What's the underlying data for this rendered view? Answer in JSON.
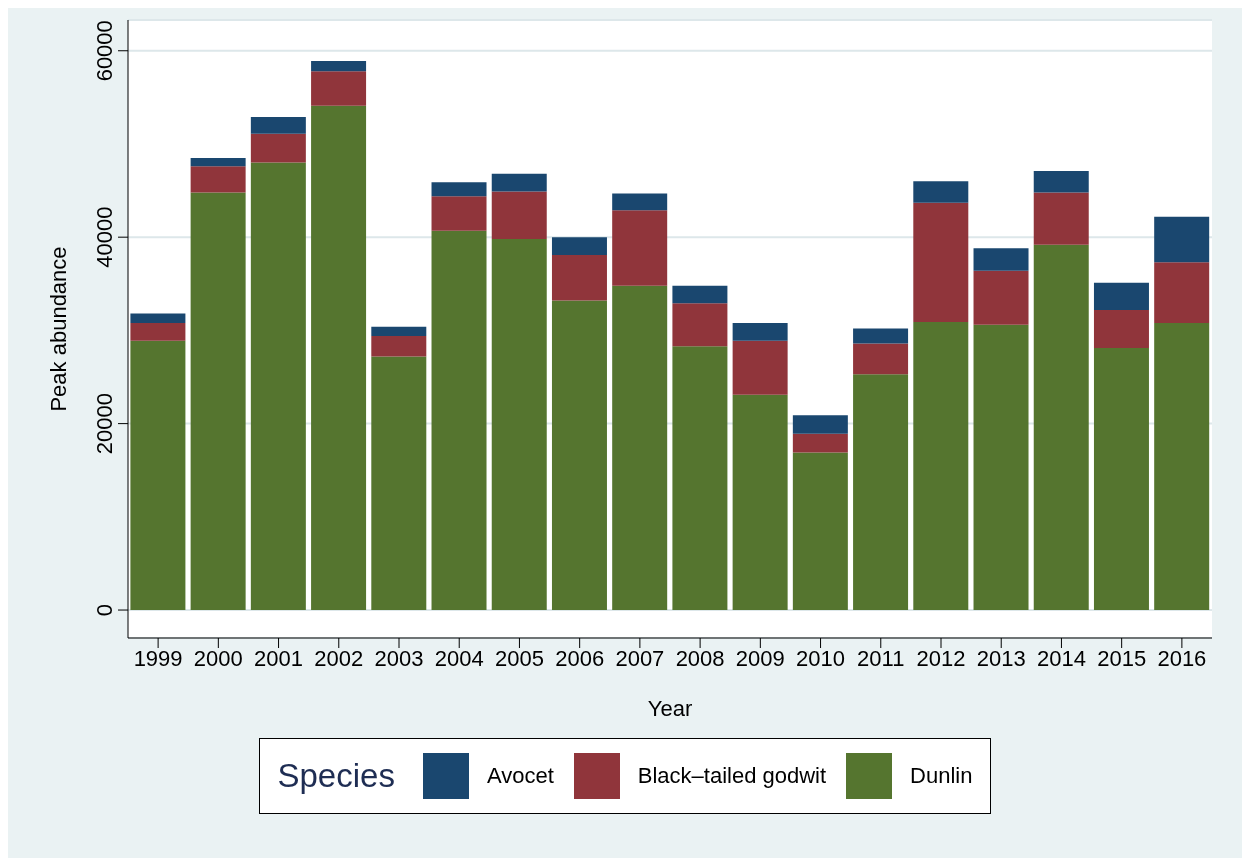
{
  "chart_data": {
    "type": "bar",
    "stacked": true,
    "xlabel": "Year",
    "ylabel": "Peak abundance",
    "legend_title": "Species",
    "legend": "bottom",
    "grid": "y",
    "categories": [
      "1999",
      "2000",
      "2001",
      "2002",
      "2003",
      "2004",
      "2005",
      "2006",
      "2007",
      "2008",
      "2009",
      "2010",
      "2011",
      "2012",
      "2013",
      "2014",
      "2015",
      "2016"
    ],
    "series": [
      {
        "name": "Dunlin",
        "color": "#55752f",
        "values": [
          28900,
          44800,
          48000,
          54100,
          27200,
          40700,
          39800,
          33200,
          34800,
          28300,
          23100,
          16900,
          25300,
          30900,
          30600,
          39200,
          28100,
          30800
        ]
      },
      {
        "name": "Black–tailed godwit",
        "color": "#90353b",
        "values": [
          1900,
          2800,
          3100,
          3700,
          2200,
          3700,
          5100,
          4900,
          8100,
          4600,
          5800,
          2000,
          3300,
          12800,
          5800,
          5600,
          4100,
          6500
        ]
      },
      {
        "name": "Avocet",
        "color": "#1a476f",
        "values": [
          1000,
          900,
          1800,
          1100,
          1000,
          1500,
          1900,
          1900,
          1800,
          1900,
          1900,
          2000,
          1600,
          2300,
          2400,
          2300,
          2900,
          4900
        ]
      }
    ],
    "ylim": [
      -3000,
      63300
    ],
    "yticks": [
      0,
      20000,
      40000,
      60000
    ]
  }
}
